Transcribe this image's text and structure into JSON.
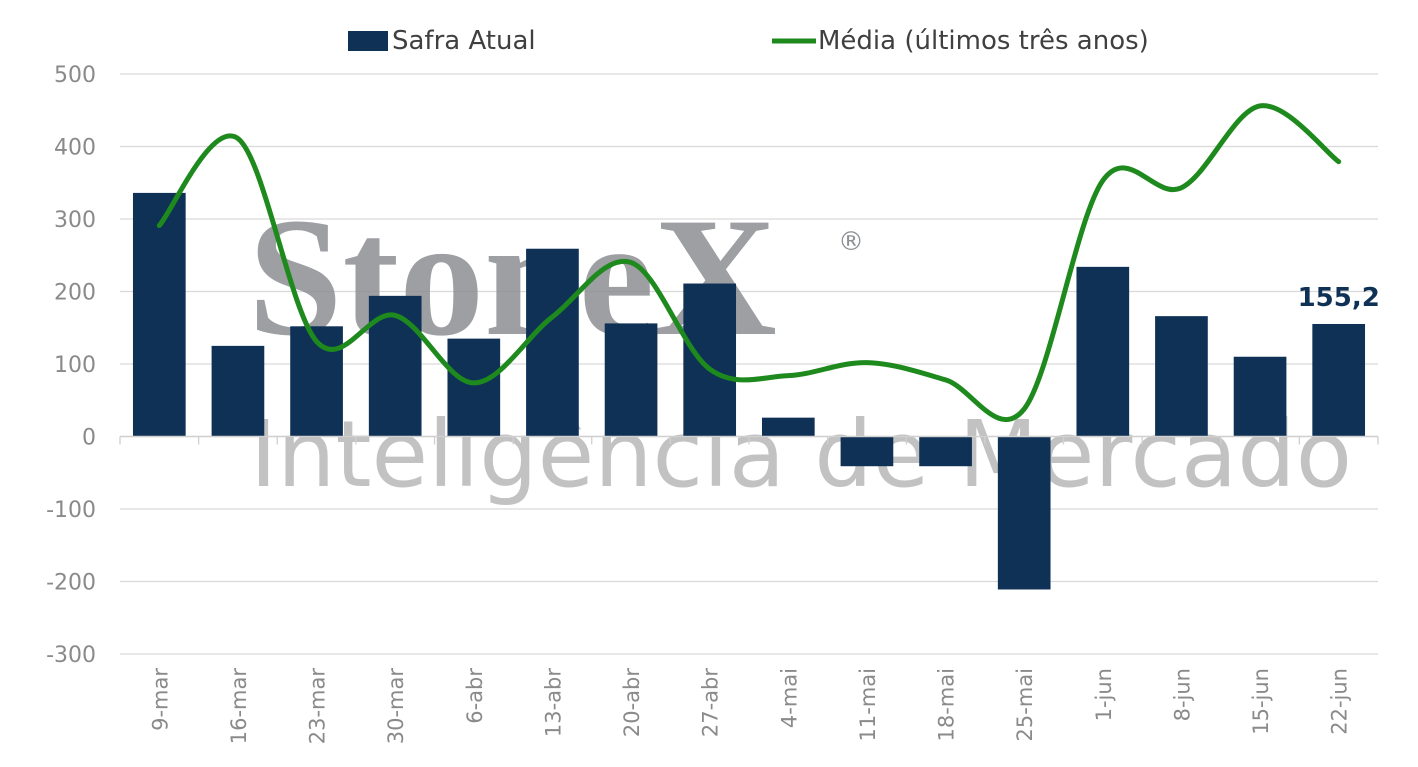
{
  "chart_data": {
    "type": "bar",
    "categories": [
      "9-mar",
      "16-mar",
      "23-mar",
      "30-mar",
      "6-abr",
      "13-abr",
      "20-abr",
      "27-abr",
      "4-mai",
      "11-mai",
      "18-mai",
      "25-mai",
      "1-jun",
      "8-jun",
      "15-jun",
      "22-jun"
    ],
    "series": [
      {
        "name": "Safra Atual",
        "type": "bar",
        "color": "#0e3155",
        "values": [
          336,
          125,
          152,
          194,
          135,
          259,
          156,
          211,
          26,
          -41,
          -41,
          -211,
          234,
          166,
          110,
          155.2
        ]
      },
      {
        "name": "Média (últimos três anos)",
        "type": "line",
        "color": "#1e8a1e",
        "values": [
          291,
          411,
          131,
          167,
          74,
          165,
          240,
          93,
          84,
          102,
          78,
          38,
          353,
          343,
          456,
          379
        ]
      }
    ],
    "ylim": [
      -300,
      500
    ],
    "yticks": [
      500,
      400,
      300,
      200,
      100,
      0,
      -100,
      -200,
      -300
    ],
    "ytick_labels": [
      "500",
      "400",
      "300",
      "200",
      "100",
      "0",
      "-100",
      "-200",
      "-300"
    ],
    "grid": true,
    "legend_position": "top",
    "annotation": {
      "label": "155,2",
      "category": "22-jun"
    },
    "title": "",
    "xlabel": "",
    "ylabel": ""
  },
  "watermark": {
    "brand": "StoneX",
    "registered": "®",
    "subtitle": "Inteligência de Mercado"
  }
}
